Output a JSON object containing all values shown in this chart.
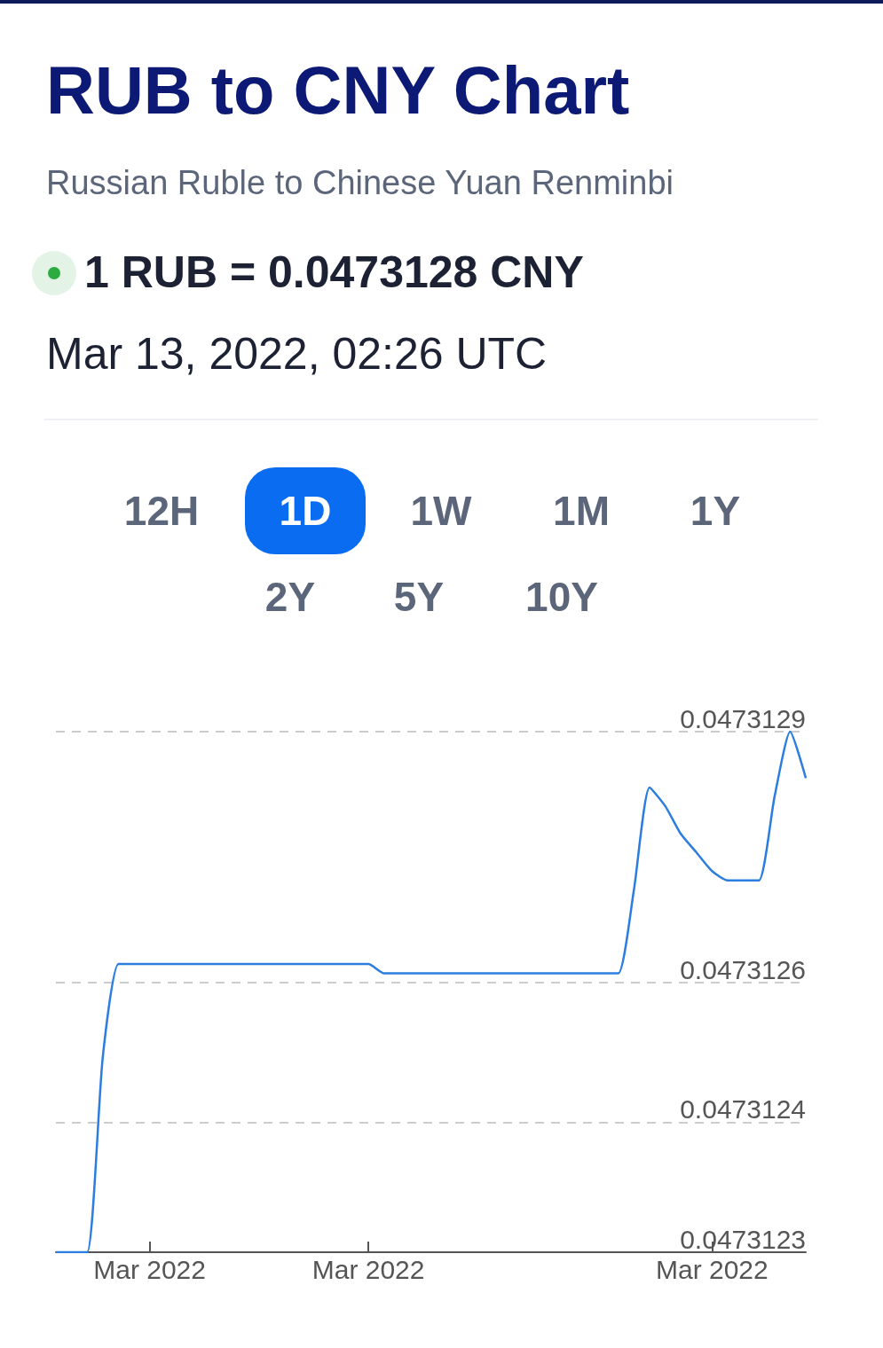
{
  "chart_data": {
    "type": "line",
    "title": "RUB to CNY Chart",
    "subtitle": "Russian Ruble to Chinese Yuan Renminbi",
    "annotations": [
      "1 RUB = 0.0473128 CNY",
      "Mar 13, 2022, 02:26 UTC",
      "12H",
      "1D",
      "1W",
      "1M",
      "1Y",
      "2Y",
      "5Y",
      "10Y"
    ],
    "categories": [
      null,
      null,
      null,
      null,
      null,
      null,
      "Mar 2022",
      null,
      null,
      null,
      null,
      null,
      null,
      null,
      null,
      null,
      null,
      null,
      null,
      null,
      "Mar 2022",
      null,
      null,
      null,
      null,
      null,
      null,
      null,
      null,
      null,
      null,
      null,
      null,
      null,
      null,
      null,
      null,
      null,
      null,
      null,
      null,
      null,
      "Mar 2022",
      null,
      null,
      null,
      null,
      null,
      null
    ],
    "series": [
      {
        "color": "#2b7de0",
        "values": [
          0.0473123,
          0.0473123,
          0.0473123,
          0.04731251,
          0.04731261,
          0.04731261,
          0.04731261,
          0.04731261,
          0.04731261,
          0.04731261,
          0.04731261,
          0.04731261,
          0.04731261,
          0.04731261,
          0.04731261,
          0.04731261,
          0.04731261,
          0.04731261,
          0.04731261,
          0.04731261,
          0.04731261,
          0.0473126,
          0.0473126,
          0.0473126,
          0.0473126,
          0.0473126,
          0.0473126,
          0.0473126,
          0.0473126,
          0.0473126,
          0.0473126,
          0.0473126,
          0.0473126,
          0.0473126,
          0.0473126,
          0.0473126,
          0.0473126,
          0.04731269,
          0.0473128,
          0.04731278,
          0.04731275,
          0.04731273,
          0.04731271,
          0.0473127,
          0.0473127,
          0.0473127,
          0.04731279,
          0.04731286,
          0.04731281
        ]
      }
    ],
    "ylim": [
      0.0473123,
      0.04731286
    ],
    "yticks": [
      {
        "value": 0.0473123,
        "label": "0.0473123"
      },
      {
        "value": 0.04731244,
        "label": "0.0473124"
      },
      {
        "value": 0.04731259,
        "label": "0.0473126"
      },
      {
        "value": 0.04731286,
        "label": "0.0473129"
      }
    ],
    "grid": "y",
    "marker": "none",
    "line_style": "solid"
  }
}
